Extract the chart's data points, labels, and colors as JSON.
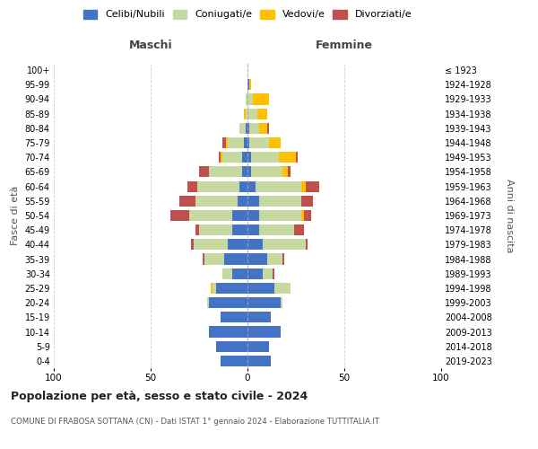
{
  "age_groups": [
    "0-4",
    "5-9",
    "10-14",
    "15-19",
    "20-24",
    "25-29",
    "30-34",
    "35-39",
    "40-44",
    "45-49",
    "50-54",
    "55-59",
    "60-64",
    "65-69",
    "70-74",
    "75-79",
    "80-84",
    "85-89",
    "90-94",
    "95-99",
    "100+"
  ],
  "birth_years": [
    "2019-2023",
    "2014-2018",
    "2009-2013",
    "2004-2008",
    "1999-2003",
    "1994-1998",
    "1989-1993",
    "1984-1988",
    "1979-1983",
    "1974-1978",
    "1969-1973",
    "1964-1968",
    "1959-1963",
    "1954-1958",
    "1949-1953",
    "1944-1948",
    "1939-1943",
    "1934-1938",
    "1929-1933",
    "1924-1928",
    "≤ 1923"
  ],
  "maschi": {
    "celibi": [
      14,
      16,
      20,
      14,
      20,
      16,
      8,
      12,
      10,
      8,
      8,
      5,
      4,
      3,
      3,
      2,
      1,
      0,
      0,
      0,
      0
    ],
    "coniugati": [
      0,
      0,
      0,
      0,
      1,
      2,
      5,
      10,
      18,
      17,
      22,
      22,
      22,
      17,
      10,
      8,
      3,
      1,
      1,
      0,
      0
    ],
    "vedovi": [
      0,
      0,
      0,
      0,
      0,
      1,
      0,
      0,
      0,
      0,
      0,
      0,
      0,
      0,
      1,
      1,
      0,
      1,
      0,
      0,
      0
    ],
    "divorziati": [
      0,
      0,
      0,
      0,
      0,
      0,
      0,
      1,
      1,
      2,
      10,
      8,
      5,
      5,
      1,
      2,
      0,
      0,
      0,
      0,
      0
    ]
  },
  "femmine": {
    "nubili": [
      12,
      11,
      17,
      12,
      17,
      14,
      8,
      10,
      8,
      6,
      6,
      6,
      4,
      2,
      2,
      1,
      1,
      0,
      0,
      1,
      0
    ],
    "coniugate": [
      0,
      0,
      0,
      0,
      1,
      8,
      5,
      8,
      22,
      18,
      22,
      22,
      24,
      16,
      14,
      10,
      5,
      5,
      3,
      0,
      0
    ],
    "vedove": [
      0,
      0,
      0,
      0,
      0,
      0,
      0,
      0,
      0,
      0,
      1,
      0,
      2,
      3,
      9,
      6,
      4,
      5,
      8,
      1,
      0
    ],
    "divorziate": [
      0,
      0,
      0,
      0,
      0,
      0,
      1,
      1,
      1,
      5,
      4,
      6,
      7,
      1,
      1,
      0,
      1,
      0,
      0,
      0,
      0
    ]
  },
  "colors": {
    "celibi_nubili": "#4472c4",
    "coniugati": "#c6d9a0",
    "vedovi": "#ffc000",
    "divorziati": "#c0504d"
  },
  "title": "Popolazione per età, sesso e stato civile - 2024",
  "subtitle": "COMUNE DI FRABOSA SOTTANA (CN) - Dati ISTAT 1° gennaio 2024 - Elaborazione TUTTITALIA.IT",
  "xlabel_left": "Maschi",
  "xlabel_right": "Femmine",
  "ylabel_left": "Fasce di età",
  "ylabel_right": "Anni di nascita",
  "xlim": 100,
  "legend_labels": [
    "Celibi/Nubili",
    "Coniugati/e",
    "Vedovi/e",
    "Divorziati/e"
  ],
  "background_color": "#ffffff",
  "grid_color": "#cccccc"
}
